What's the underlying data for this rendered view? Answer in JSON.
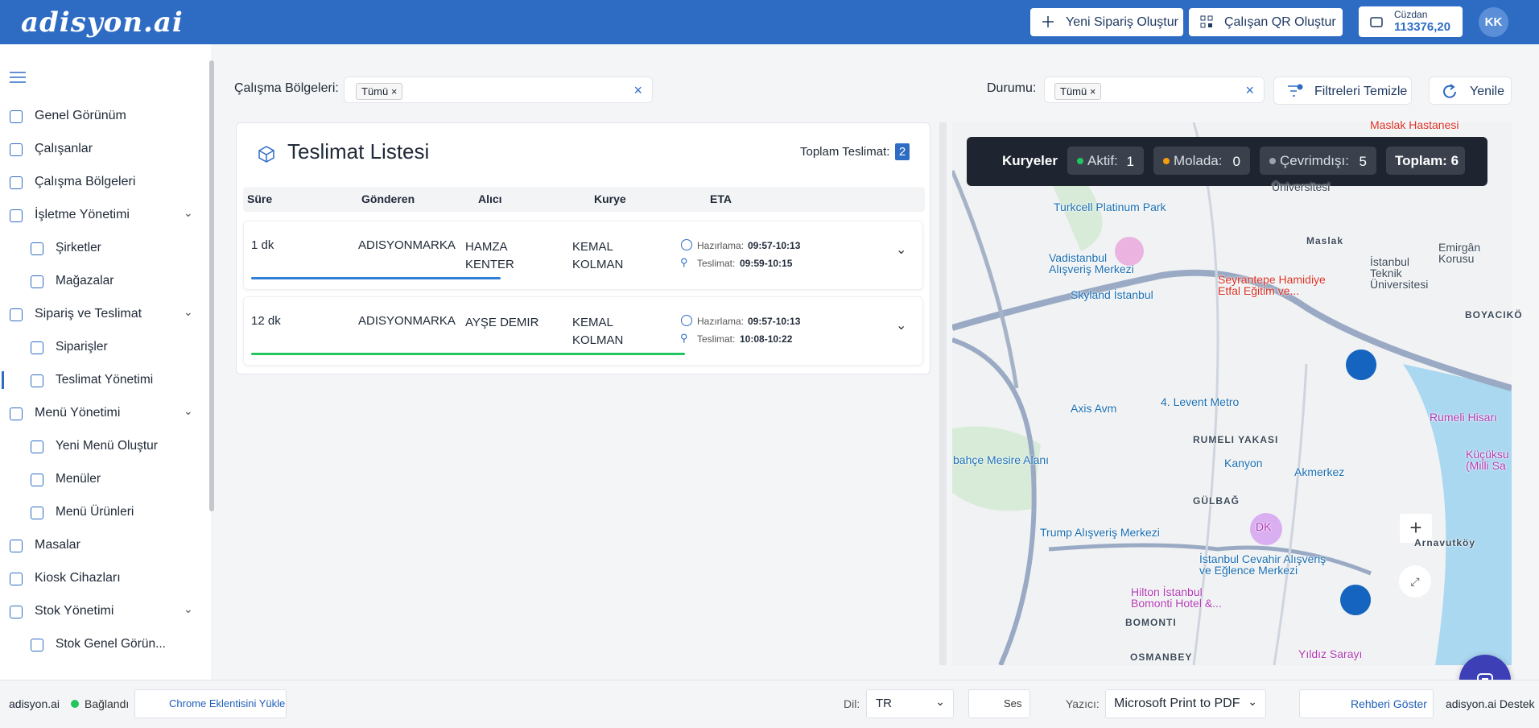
{
  "header": {
    "logo": "adisyon.ai",
    "buttons": [
      "Yeni Sipariş Oluştur",
      "Çalışan QR Oluştur"
    ],
    "wallet": {
      "label": "Cüzdan",
      "amount": "113376,20"
    },
    "avatar": "KK"
  },
  "sidebar": {
    "items": [
      {
        "label": "Genel Görünüm"
      },
      {
        "label": "Çalışanlar"
      },
      {
        "label": "Çalışma Bölgeleri"
      },
      {
        "label": "İşletme Yönetimi",
        "children": [
          {
            "label": "Şirketler"
          },
          {
            "label": "Mağazalar"
          }
        ]
      },
      {
        "label": "Sipariş ve Teslimat",
        "children": [
          {
            "label": "Siparişler"
          },
          {
            "label": "Teslimat Yönetimi",
            "active": true
          }
        ]
      },
      {
        "label": "Menü Yönetimi",
        "children": [
          {
            "label": "Yeni Menü Oluştur"
          },
          {
            "label": "Menüler"
          },
          {
            "label": "Menü Ürünleri"
          }
        ]
      },
      {
        "label": "Masalar"
      },
      {
        "label": "Kiosk Cihazları"
      },
      {
        "label": "Stok Yönetimi",
        "children": [
          {
            "label": "Stok Genel Görün..."
          }
        ]
      }
    ]
  },
  "filters": {
    "region": {
      "label": "Çalışma Bölgeleri:",
      "tag": "Tümü"
    },
    "status": {
      "label": "Durumu:",
      "tag": "Tümü"
    },
    "clear": "Filtreleri Temizle",
    "refresh": "Yenile"
  },
  "list": {
    "title": "Teslimat Listesi",
    "total_label": "Toplam Teslimat:",
    "total": "2",
    "columns": [
      "Süre",
      "Gönderen",
      "Alıcı",
      "Kurye",
      "ETA"
    ],
    "rows": [
      {
        "duration": "1 dk",
        "sender": "ADISYONMARKA",
        "receiver": "HAMZA KENTER",
        "courier": "KEMAL KOLMAN",
        "prep_label": "Hazırlama:",
        "prep": "09:57-10:13",
        "delivery_label": "Teslimat:",
        "delivery": "09:59-10:15",
        "progress": 38,
        "color": "#2f80d6"
      },
      {
        "duration": "12 dk",
        "sender": "ADISYONMARKA",
        "receiver": "AYŞE DEMIR",
        "courier": "KEMAL KOLMAN",
        "prep_label": "Hazırlama:",
        "prep": "09:57-10:13",
        "delivery_label": "Teslimat:",
        "delivery": "10:08-10:22",
        "progress": 66,
        "color": "#22c55e"
      }
    ]
  },
  "map": {
    "legend": {
      "title": "Kuryeler",
      "items": [
        {
          "label": "Aktif:",
          "count": "1",
          "color": "#22c55e"
        },
        {
          "label": "Molada:",
          "count": "0",
          "color": "#f59e0b"
        },
        {
          "label": "Çevrimdışı:",
          "count": "5",
          "color": "#9ca3af"
        }
      ],
      "total": "Toplam: 6"
    },
    "labels": [
      "Maslak Hastanesi",
      "Turkcell Platinum Park",
      "Üniversitesi",
      "Vadistanbul\nAlışveriş Merkezi",
      "Maslak",
      "İstanbul\nTeknik\nÜniversitesi",
      "Emirgân\nKorusu",
      "Seyrantepe Hamidiye\nEtfal Eğitim ve...",
      "Skyland İstanbul",
      "BOYACIKÖ",
      "Axis Avm",
      "4. Levent Metro",
      "RUMELI YAKASI",
      "Rumeli Hisarı",
      "Kanyon",
      "Akmerkez",
      "Küçüksu\n(Milli Sa",
      "bahçe Mesire Alanı",
      "GÜLBAĞ",
      "Trump Alışveriş Merkezi",
      "İstanbul Cevahir Alışveriş\nve Eğlence Merkezi",
      "Arnavutköy",
      "Hilton İstanbul\nBomonti Hotel &...",
      "BOMONTI",
      "OSMANBEY",
      "Yıldız Sarayı",
      "DK"
    ]
  },
  "footer": {
    "brand": "adisyon.ai",
    "status": "Bağlandı",
    "extension": "Chrome Eklentisini Yükle",
    "language_label": "Dil:",
    "language": "TR",
    "sound": "Ses",
    "printer_label": "Yazıcı:",
    "printer": "Microsoft Print to PDF",
    "guide": "Rehberi Göster",
    "support": "adisyon.ai Destek"
  }
}
